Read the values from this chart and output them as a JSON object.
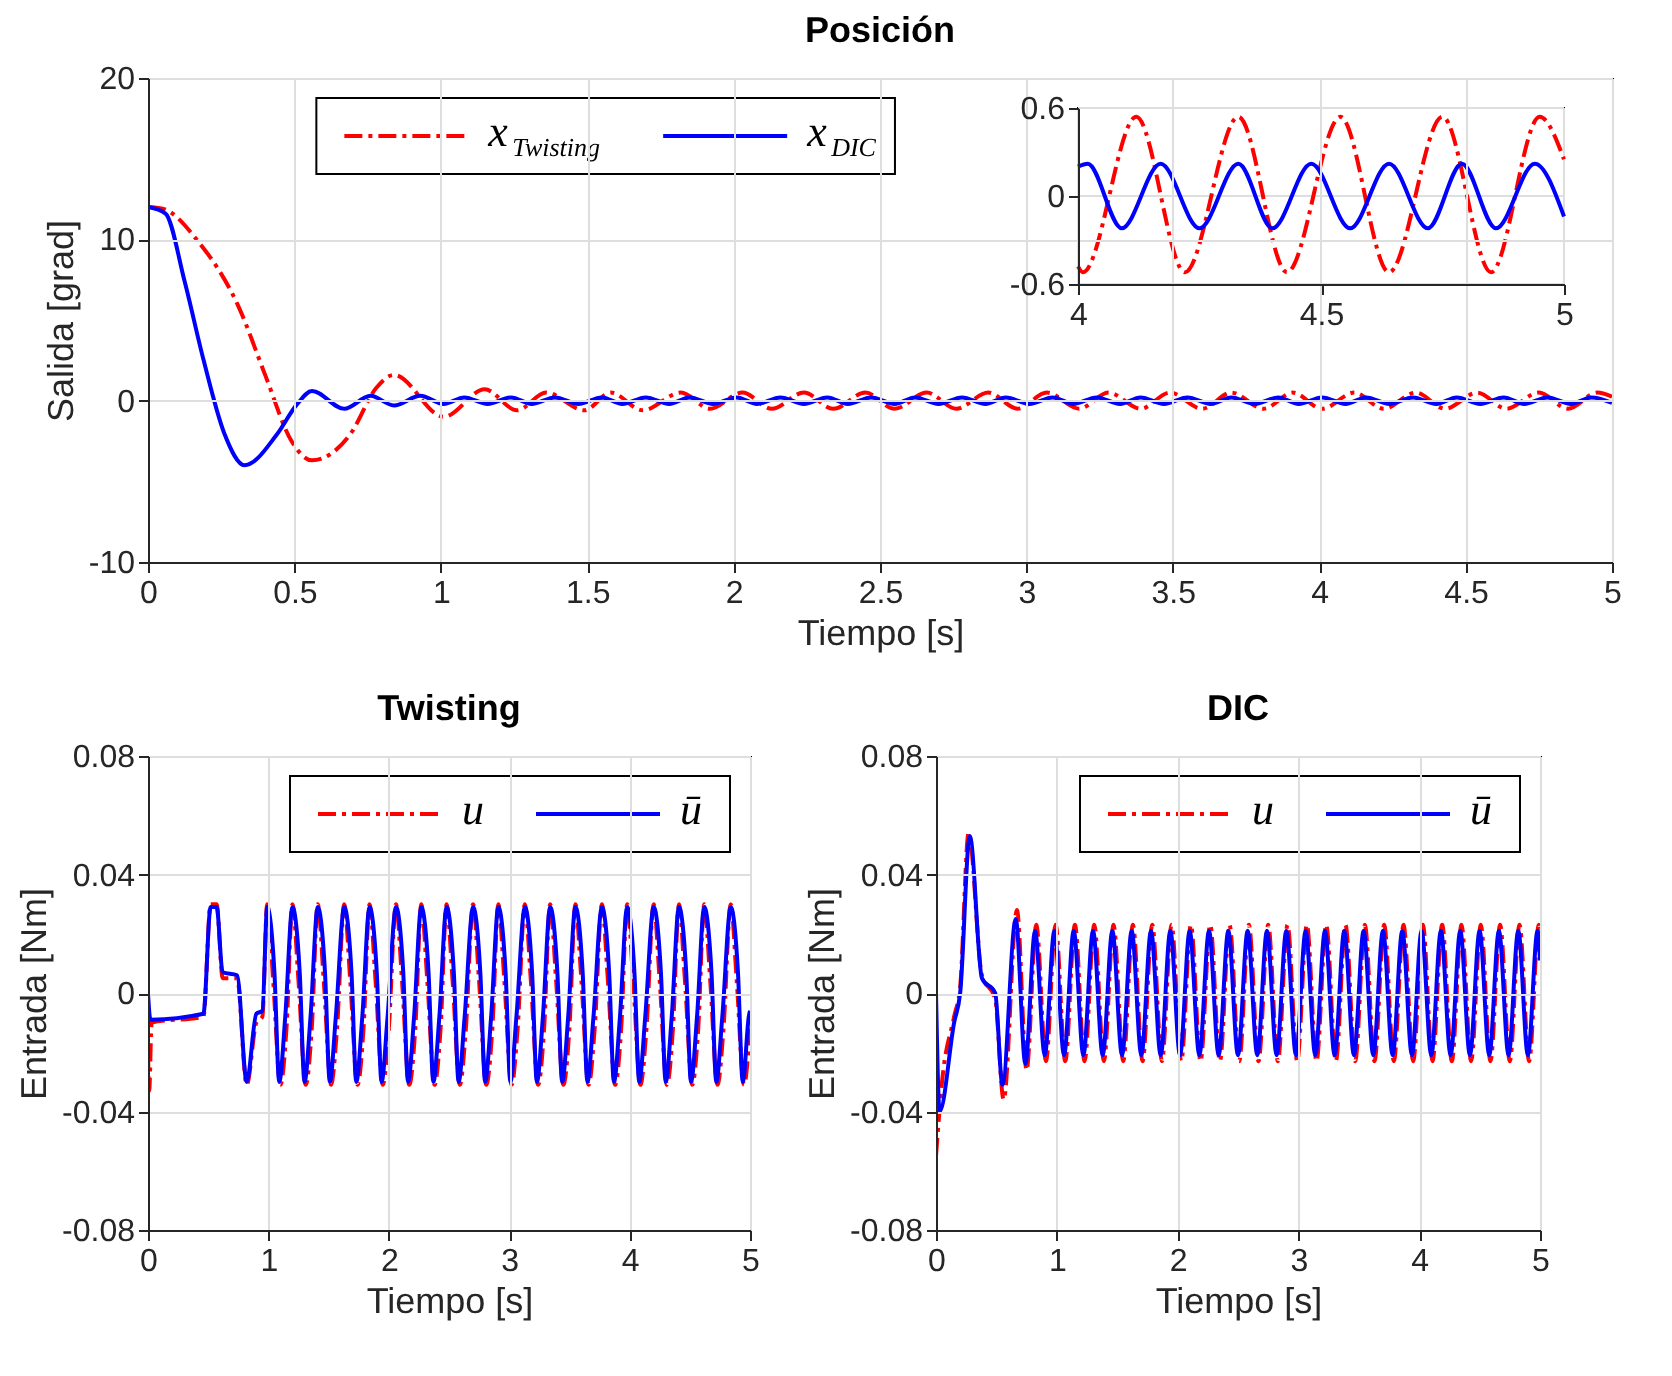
{
  "chart_data": [
    {
      "type": "line",
      "title": "Posición",
      "xlabel": "Tiempo [s]",
      "ylabel": "Salida [grad]",
      "xlim": [
        0,
        5
      ],
      "ylim": [
        -10,
        20
      ],
      "xticks": [
        0,
        0.5,
        1,
        1.5,
        2,
        2.5,
        3,
        3.5,
        4,
        4.5,
        5
      ],
      "yticks": [
        -10,
        0,
        10,
        20
      ],
      "grid": true,
      "legend": "top left",
      "series": [
        {
          "name": "x$_{Twisting}$",
          "color": "#ff0000",
          "line_style": "dashed",
          "x": [
            0,
            0.05,
            0.17,
            0.31,
            0.4,
            0.49,
            0.56,
            0.69,
            0.78,
            0.84,
            1.01,
            1.15,
            1.26,
            1.36,
            1.49,
            1.58,
            1.69,
            1.82,
            1.92,
            2.03,
            2.13,
            2.24,
            2.34,
            2.45,
            2.55,
            2.66,
            2.76,
            2.87,
            2.97,
            3.07,
            3.18,
            3.28,
            3.39,
            3.49,
            3.6,
            3.7,
            3.81,
            3.91,
            4.01,
            4.12,
            4.22,
            4.33,
            4.43,
            4.54,
            4.64,
            4.75,
            4.85,
            4.95,
            5
          ],
          "values": [
            12,
            11.9,
            9.9,
            5.8,
            1.6,
            -2.5,
            -3.7,
            -2.1,
            0.8,
            1.6,
            -1.0,
            0.7,
            -0.6,
            0.5,
            -0.6,
            0.5,
            -0.6,
            0.5,
            -0.5,
            0.5,
            -0.5,
            0.5,
            -0.5,
            0.5,
            -0.5,
            0.5,
            -0.5,
            0.5,
            -0.5,
            0.5,
            -0.5,
            0.5,
            -0.5,
            0.5,
            -0.5,
            0.5,
            -0.5,
            0.5,
            -0.5,
            0.5,
            -0.5,
            0.5,
            -0.5,
            0.5,
            -0.5,
            0.5,
            -0.5,
            0.5,
            0.25
          ]
        },
        {
          "name": "x$_{DIC}$",
          "color": "#0000ff",
          "line_style": "solid",
          "x": [
            0,
            0.06,
            0.125,
            0.19,
            0.26,
            0.33,
            0.44,
            0.51,
            0.56,
            0.67,
            0.76,
            0.84,
            0.93,
            1.01,
            1.08,
            1.16,
            1.24,
            1.31,
            1.39,
            1.47,
            1.55,
            1.62,
            1.7,
            1.78,
            1.85,
            1.93,
            2.01,
            2.08,
            2.16,
            2.24,
            2.32,
            2.39,
            2.47,
            2.55,
            2.62,
            2.7,
            2.78,
            2.86,
            2.93,
            3.01,
            3.09,
            3.16,
            3.24,
            3.32,
            3.39,
            3.47,
            3.55,
            3.63,
            3.7,
            3.78,
            3.86,
            3.93,
            4.01,
            4.09,
            4.16,
            4.24,
            4.32,
            4.4,
            4.47,
            4.55,
            4.63,
            4.7,
            4.78,
            4.86,
            4.93,
            5
          ],
          "values": [
            12,
            11.6,
            7.4,
            2.5,
            -2.0,
            -4.0,
            -2.1,
            -0.2,
            0.6,
            -0.5,
            0.3,
            -0.3,
            0.3,
            -0.2,
            0.2,
            -0.2,
            0.2,
            -0.2,
            0.2,
            -0.2,
            0.2,
            -0.2,
            0.2,
            -0.2,
            0.2,
            -0.2,
            0.2,
            -0.2,
            0.2,
            -0.2,
            0.2,
            -0.2,
            0.2,
            -0.2,
            0.2,
            -0.2,
            0.2,
            -0.2,
            0.2,
            -0.2,
            0.2,
            -0.2,
            0.2,
            -0.2,
            0.2,
            -0.2,
            0.2,
            -0.2,
            0.2,
            -0.2,
            0.2,
            -0.2,
            0.2,
            -0.2,
            0.2,
            -0.2,
            0.2,
            -0.2,
            0.2,
            -0.2,
            0.2,
            -0.2,
            0.2,
            -0.2,
            0.2,
            -0.14
          ]
        }
      ]
    },
    {
      "type": "line",
      "xlim": [
        4,
        5
      ],
      "ylim": [
        -0.6,
        0.6
      ],
      "xticks": [
        4,
        4.5,
        5
      ],
      "yticks": [
        -0.6,
        0,
        0.6
      ],
      "grid": true,
      "series": [
        {
          "color": "#ff0000",
          "line_style": "dashed",
          "x": [
            4,
            4.01,
            4.12,
            4.22,
            4.33,
            4.43,
            4.54,
            4.64,
            4.75,
            4.85,
            4.95,
            5
          ],
          "values": [
            -0.48,
            -0.52,
            0.54,
            -0.52,
            0.54,
            -0.52,
            0.54,
            -0.52,
            0.54,
            -0.52,
            0.54,
            0.25
          ]
        },
        {
          "color": "#0000ff",
          "line_style": "solid",
          "x": [
            4,
            4.02,
            4.09,
            4.17,
            4.25,
            4.33,
            4.4,
            4.48,
            4.56,
            4.64,
            4.72,
            4.79,
            4.86,
            4.94,
            5
          ],
          "values": [
            0.2,
            0.22,
            -0.22,
            0.22,
            -0.22,
            0.22,
            -0.22,
            0.22,
            -0.22,
            0.22,
            -0.22,
            0.22,
            -0.22,
            0.22,
            -0.14
          ]
        }
      ]
    },
    {
      "type": "line",
      "title": "Twisting",
      "xlabel": "Tiempo [s]",
      "ylabel": "Entrada [Nm]",
      "xlim": [
        0,
        5
      ],
      "ylim": [
        -0.08,
        0.08
      ],
      "xticks": [
        0,
        1,
        2,
        3,
        4,
        5
      ],
      "yticks": [
        -0.08,
        -0.04,
        0,
        0.04,
        0.08
      ],
      "grid": true,
      "legend": "top right",
      "series": [
        {
          "name": "u",
          "color": "#ff0000",
          "line_style": "dashed",
          "x": [
            0,
            0.01,
            0.03,
            0.46,
            0.52,
            0.57,
            0.62,
            0.74,
            0.82,
            0.9,
            0.95,
            0.99,
            1.04,
            1.1,
            1.15,
            1.2,
            1.25,
            1.31,
            1.36,
            1.41,
            1.46,
            1.52,
            1.57,
            1.63,
            1.68,
            1.74,
            1.79,
            1.84,
            1.89,
            1.95,
            2.0,
            2.06,
            2.11,
            2.17,
            2.22,
            2.27,
            2.32,
            2.38,
            2.43,
            2.48,
            2.53,
            2.59,
            2.64,
            2.7,
            2.75,
            2.81,
            2.86,
            2.91,
            2.96,
            3.02,
            3.07,
            3.13,
            3.18,
            3.24,
            3.29,
            3.34,
            3.39,
            3.45,
            3.5,
            3.55,
            3.6,
            3.66,
            3.71,
            3.77,
            3.82,
            3.88,
            3.93,
            3.98,
            4.03,
            4.09,
            4.14,
            4.2,
            4.25,
            4.31,
            4.36,
            4.41,
            4.46,
            4.52,
            4.57,
            4.62,
            4.67,
            4.73,
            4.78,
            4.84,
            4.89,
            4.95,
            5
          ],
          "values": [
            -0.02,
            -0.033,
            -0.01,
            -0.008,
            0.03,
            0.03,
            0.005,
            0.005,
            -0.031,
            -0.01,
            -0.008,
            0.03,
            0.004,
            -0.031,
            -0.012,
            0.03,
            0.004,
            -0.031,
            -0.012,
            0.03,
            0.004,
            -0.031,
            -0.012,
            0.03,
            0.004,
            -0.031,
            -0.012,
            0.03,
            0.004,
            -0.031,
            -0.012,
            0.03,
            0.004,
            -0.031,
            -0.012,
            0.03,
            0.004,
            -0.031,
            -0.012,
            0.03,
            0.004,
            -0.031,
            -0.012,
            0.03,
            0.004,
            -0.031,
            -0.012,
            0.03,
            0.004,
            -0.031,
            -0.012,
            0.03,
            0.004,
            -0.031,
            -0.012,
            0.03,
            0.004,
            -0.031,
            -0.012,
            0.03,
            0.004,
            -0.031,
            -0.012,
            0.03,
            0.004,
            -0.031,
            -0.012,
            0.03,
            0.004,
            -0.031,
            -0.012,
            0.03,
            0.004,
            -0.031,
            -0.012,
            0.03,
            0.004,
            -0.031,
            -0.012,
            0.03,
            0.004,
            -0.031,
            -0.012,
            0.03,
            0.004,
            -0.031,
            -0.012
          ]
        },
        {
          "name": "ū",
          "color": "#0000ff",
          "line_style": "solid",
          "x": [
            0,
            0.02,
            0.46,
            0.52,
            0.57,
            0.62,
            0.74,
            0.82,
            0.9,
            0.95,
            0.99,
            1.05,
            1.09,
            1.14,
            1.2,
            1.26,
            1.3,
            1.35,
            1.41,
            1.47,
            1.51,
            1.56,
            1.63,
            1.69,
            1.73,
            1.78,
            1.84,
            1.9,
            1.94,
            1.99,
            2.06,
            2.12,
            2.16,
            2.21,
            2.27,
            2.33,
            2.37,
            2.42,
            2.48,
            2.54,
            2.58,
            2.63,
            2.7,
            2.76,
            2.8,
            2.85,
            2.91,
            2.97,
            3.01,
            3.06,
            3.13,
            3.19,
            3.23,
            3.28,
            3.34,
            3.4,
            3.44,
            3.49,
            3.55,
            3.61,
            3.65,
            3.7,
            3.77,
            3.83,
            3.87,
            3.92,
            3.98,
            4.04,
            4.08,
            4.13,
            4.2,
            4.26,
            4.3,
            4.35,
            4.41,
            4.47,
            4.51,
            4.56,
            4.62,
            4.68,
            4.72,
            4.77,
            4.84,
            4.9,
            4.94,
            4.99,
            5
          ],
          "values": [
            0,
            -0.009,
            -0.007,
            0.029,
            0.029,
            0.007,
            0.006,
            -0.03,
            -0.007,
            -0.006,
            0.029,
            0.007,
            -0.03,
            -0.008,
            0.029,
            0.007,
            -0.03,
            -0.008,
            0.029,
            0.007,
            -0.03,
            -0.008,
            0.029,
            0.007,
            -0.03,
            -0.008,
            0.029,
            0.007,
            -0.03,
            -0.008,
            0.029,
            0.007,
            -0.03,
            -0.008,
            0.029,
            0.007,
            -0.03,
            -0.008,
            0.029,
            0.007,
            -0.03,
            -0.008,
            0.029,
            0.007,
            -0.03,
            -0.008,
            0.029,
            0.007,
            -0.03,
            -0.008,
            0.029,
            0.007,
            -0.03,
            -0.008,
            0.029,
            0.007,
            -0.03,
            -0.008,
            0.029,
            0.007,
            -0.03,
            -0.008,
            0.029,
            0.007,
            -0.03,
            -0.008,
            0.029,
            0.007,
            -0.03,
            -0.008,
            0.029,
            0.007,
            -0.03,
            -0.008,
            0.029,
            0.007,
            -0.03,
            -0.008,
            0.029,
            0.007,
            -0.03,
            -0.008,
            0.029,
            0.007,
            -0.03,
            -0.008,
            -0.006
          ]
        }
      ]
    },
    {
      "type": "line",
      "title": "DIC",
      "xlabel": "Tiempo [s]",
      "ylabel": "Entrada [Nm]",
      "xlim": [
        0,
        5
      ],
      "ylim": [
        -0.08,
        0.08
      ],
      "xticks": [
        0,
        1,
        2,
        3,
        4,
        5
      ],
      "yticks": [
        -0.08,
        -0.04,
        0,
        0.04,
        0.08
      ],
      "grid": true,
      "legend": "top right",
      "series": [
        {
          "name": "u",
          "color": "#ff0000",
          "line_style": "dashed",
          "x": [
            0,
            0.05,
            0.15,
            0.2,
            0.27,
            0.38,
            0.49,
            0.56,
            0.67,
            0.75,
            0.83,
            0.91,
            0.99,
            1.07,
            1.15,
            1.23,
            1.31,
            1.39,
            1.47,
            1.55,
            1.63,
            1.71,
            1.79,
            1.87,
            1.95,
            2.03,
            2.11,
            2.19,
            2.27,
            2.35,
            2.43,
            2.51,
            2.59,
            2.67,
            2.75,
            2.83,
            2.91,
            2.99,
            3.07,
            3.15,
            3.23,
            3.31,
            3.39,
            3.47,
            3.55,
            3.63,
            3.71,
            3.79,
            3.87,
            3.95,
            4.03,
            4.11,
            4.19,
            4.27,
            4.35,
            4.43,
            4.51,
            4.59,
            4.67,
            4.75,
            4.83,
            4.91,
            4.99,
            5
          ],
          "values": [
            -0.055,
            -0.03,
            -0.008,
            0.002,
            0.054,
            0.006,
            -0.002,
            -0.036,
            0.028,
            -0.026,
            0.023,
            -0.023,
            0.023,
            -0.023,
            0.023,
            -0.023,
            0.023,
            -0.023,
            0.023,
            -0.023,
            0.023,
            -0.023,
            0.023,
            -0.023,
            0.023,
            -0.023,
            0.023,
            -0.023,
            0.023,
            -0.023,
            0.023,
            -0.023,
            0.023,
            -0.023,
            0.023,
            -0.023,
            0.023,
            -0.023,
            0.023,
            -0.023,
            0.023,
            -0.023,
            0.023,
            -0.023,
            0.023,
            -0.023,
            0.023,
            -0.023,
            0.023,
            -0.023,
            0.023,
            -0.023,
            0.023,
            -0.023,
            0.023,
            -0.023,
            0.023,
            -0.023,
            0.023,
            -0.023,
            0.023,
            -0.023,
            0.023,
            0.02
          ]
        },
        {
          "name": "ū",
          "color": "#0000ff",
          "line_style": "solid",
          "x": [
            0,
            0.03,
            0.15,
            0.2,
            0.28,
            0.38,
            0.49,
            0.55,
            0.66,
            0.74,
            0.82,
            0.9,
            0.98,
            1.06,
            1.14,
            1.22,
            1.3,
            1.38,
            1.46,
            1.54,
            1.62,
            1.7,
            1.78,
            1.86,
            1.94,
            2.02,
            2.1,
            2.18,
            2.26,
            2.34,
            2.42,
            2.5,
            2.58,
            2.66,
            2.74,
            2.82,
            2.9,
            2.98,
            3.06,
            3.14,
            3.22,
            3.3,
            3.38,
            3.46,
            3.54,
            3.62,
            3.7,
            3.78,
            3.86,
            3.94,
            4.02,
            4.1,
            4.18,
            4.26,
            4.34,
            4.42,
            4.5,
            4.58,
            4.66,
            4.74,
            4.82,
            4.9,
            4.98,
            5
          ],
          "values": [
            0,
            -0.04,
            -0.01,
            0,
            0.053,
            0.005,
            0,
            -0.031,
            0.025,
            -0.024,
            0.021,
            -0.021,
            0.021,
            -0.021,
            0.021,
            -0.021,
            0.021,
            -0.021,
            0.021,
            -0.021,
            0.021,
            -0.021,
            0.021,
            -0.021,
            0.021,
            -0.021,
            0.021,
            -0.021,
            0.021,
            -0.021,
            0.021,
            -0.021,
            0.021,
            -0.021,
            0.021,
            -0.021,
            0.021,
            -0.021,
            0.021,
            -0.021,
            0.021,
            -0.021,
            0.021,
            -0.021,
            0.021,
            -0.021,
            0.021,
            -0.021,
            0.021,
            -0.021,
            0.021,
            -0.021,
            0.021,
            -0.021,
            0.021,
            -0.021,
            0.021,
            -0.021,
            0.021,
            -0.021,
            0.021,
            -0.021,
            0.021,
            0.011
          ]
        }
      ]
    }
  ]
}
